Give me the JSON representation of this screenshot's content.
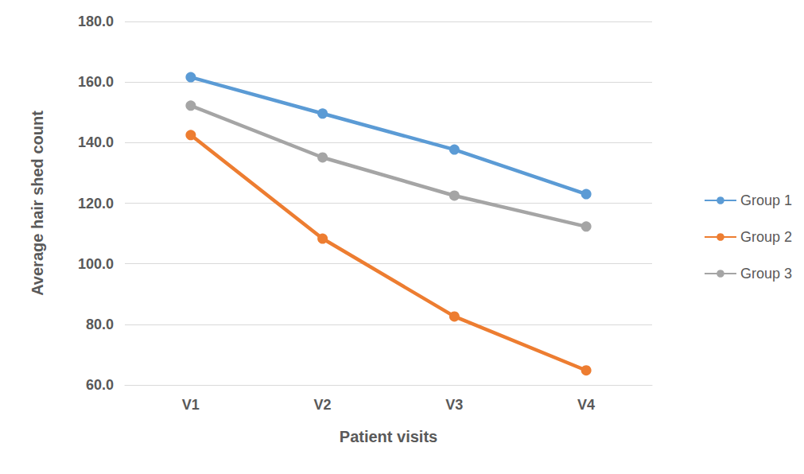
{
  "chart_data": {
    "type": "line",
    "x_label": "Patient visits",
    "y_label": "Average hair shed count",
    "categories": [
      "V1",
      "V2",
      "V3",
      "V4"
    ],
    "series": [
      {
        "name": "Group 1",
        "color": "#5b9bd5",
        "values": [
          161.6,
          149.6,
          137.7,
          123.0
        ]
      },
      {
        "name": "Group 2",
        "color": "#ed7d31",
        "values": [
          142.5,
          108.3,
          82.6,
          64.8
        ]
      },
      {
        "name": "Group 3",
        "color": "#a5a5a5",
        "values": [
          152.2,
          135.1,
          122.5,
          112.3
        ]
      }
    ],
    "ylim": [
      60,
      180
    ],
    "yticks": [
      {
        "value": 60,
        "label": "60.0"
      },
      {
        "value": 80,
        "label": "80.0"
      },
      {
        "value": 100,
        "label": "100.0"
      },
      {
        "value": 120,
        "label": "120.0"
      },
      {
        "value": 140,
        "label": "140.0"
      },
      {
        "value": 160,
        "label": "160.0"
      },
      {
        "value": 180,
        "label": "180.0"
      }
    ],
    "grid": true,
    "legend": "right",
    "marker": "circle",
    "line_style": "solid"
  }
}
